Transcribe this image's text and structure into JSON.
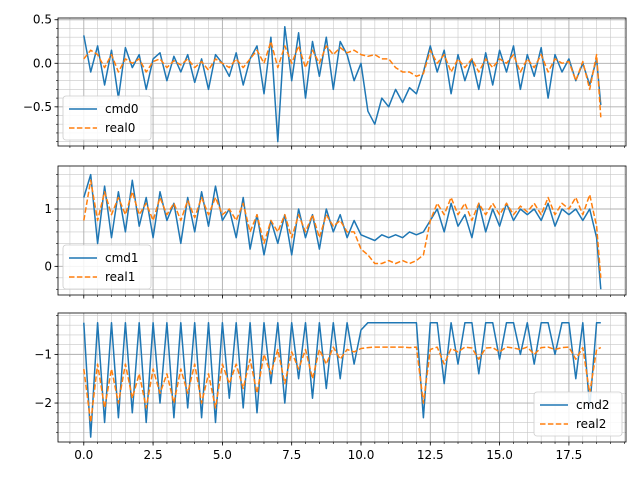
{
  "chart_data": [
    {
      "type": "line",
      "xlim": [
        -0.93,
        19.56
      ],
      "ylim": [
        -0.95,
        0.52
      ],
      "x_ticks": [
        0.0,
        2.5,
        5.0,
        7.5,
        10.0,
        12.5,
        15.0,
        17.5
      ],
      "x_tick_labels": [
        "",
        "",
        "",
        "",
        "",
        "",
        "",
        ""
      ],
      "y_ticks": [
        -0.5,
        0.0,
        0.5
      ],
      "y_tick_labels": [
        "−0.5",
        "0.0",
        "0.5"
      ],
      "grid": "major and minor",
      "legend": "lower-left",
      "series": [
        {
          "name": "cmd0",
          "color": "#1f77b4",
          "style": "solid",
          "x": [
            0.0,
            0.25,
            0.5,
            0.75,
            1.0,
            1.25,
            1.5,
            1.75,
            2.0,
            2.25,
            2.5,
            2.75,
            3.0,
            3.25,
            3.5,
            3.75,
            4.0,
            4.25,
            4.5,
            4.75,
            5.0,
            5.25,
            5.5,
            5.75,
            6.0,
            6.25,
            6.5,
            6.75,
            7.0,
            7.25,
            7.5,
            7.75,
            8.0,
            8.25,
            8.5,
            8.75,
            9.0,
            9.25,
            9.5,
            9.75,
            10.0,
            10.25,
            10.5,
            10.75,
            11.0,
            11.25,
            11.5,
            11.75,
            12.0,
            12.25,
            12.5,
            12.75,
            13.0,
            13.25,
            13.5,
            13.75,
            14.0,
            14.25,
            14.5,
            14.75,
            15.0,
            15.25,
            15.5,
            15.75,
            16.0,
            16.25,
            16.5,
            16.75,
            17.0,
            17.25,
            17.5,
            17.75,
            18.0,
            18.25,
            18.5,
            18.65
          ],
          "y": [
            0.32,
            -0.1,
            0.2,
            -0.25,
            0.15,
            -0.4,
            0.18,
            -0.05,
            0.1,
            -0.3,
            0.05,
            0.12,
            -0.2,
            0.08,
            -0.1,
            0.1,
            -0.22,
            0.05,
            -0.3,
            0.1,
            0.0,
            -0.15,
            0.12,
            -0.25,
            0.05,
            0.2,
            -0.35,
            0.3,
            -0.9,
            0.42,
            -0.2,
            0.35,
            -0.4,
            0.25,
            -0.15,
            0.3,
            -0.3,
            0.25,
            0.1,
            -0.2,
            0.0,
            -0.55,
            -0.7,
            -0.4,
            -0.5,
            -0.3,
            -0.45,
            -0.28,
            -0.35,
            -0.1,
            0.2,
            -0.1,
            0.15,
            -0.35,
            0.1,
            -0.2,
            0.05,
            -0.3,
            0.12,
            -0.25,
            0.15,
            -0.1,
            0.2,
            -0.3,
            0.1,
            -0.15,
            0.18,
            -0.4,
            0.1,
            -0.1,
            0.05,
            -0.2,
            0.0,
            -0.25,
            0.05,
            -0.48
          ]
        },
        {
          "name": "real0",
          "color": "#ff7f0e",
          "style": "dashed",
          "x": [
            0.0,
            0.25,
            0.5,
            0.75,
            1.0,
            1.25,
            1.5,
            1.75,
            2.0,
            2.25,
            2.5,
            2.75,
            3.0,
            3.25,
            3.5,
            3.75,
            4.0,
            4.25,
            4.5,
            4.75,
            5.0,
            5.25,
            5.5,
            5.75,
            6.0,
            6.25,
            6.5,
            6.75,
            7.0,
            7.25,
            7.5,
            7.75,
            8.0,
            8.25,
            8.5,
            8.75,
            9.0,
            9.25,
            9.5,
            9.75,
            10.0,
            10.25,
            10.5,
            10.75,
            11.0,
            11.25,
            11.5,
            11.75,
            12.0,
            12.25,
            12.5,
            12.75,
            13.0,
            13.25,
            13.5,
            13.75,
            14.0,
            14.25,
            14.5,
            14.75,
            15.0,
            15.25,
            15.5,
            15.75,
            16.0,
            16.25,
            16.5,
            16.75,
            17.0,
            17.25,
            17.5,
            17.75,
            18.0,
            18.25,
            18.5,
            18.65
          ],
          "y": [
            0.05,
            0.15,
            0.1,
            -0.05,
            0.1,
            -0.1,
            0.05,
            0.0,
            0.05,
            -0.1,
            0.02,
            0.05,
            -0.05,
            0.03,
            -0.02,
            0.05,
            -0.05,
            0.02,
            -0.08,
            0.05,
            0.0,
            -0.05,
            0.05,
            -0.05,
            0.05,
            0.15,
            0.0,
            0.25,
            -0.05,
            0.2,
            0.0,
            0.2,
            -0.05,
            0.15,
            0.0,
            0.2,
            0.1,
            0.18,
            0.12,
            0.15,
            0.1,
            0.08,
            0.1,
            0.05,
            0.05,
            -0.05,
            -0.1,
            -0.1,
            -0.15,
            -0.12,
            0.15,
            0.0,
            0.1,
            -0.1,
            0.05,
            -0.05,
            0.05,
            -0.1,
            0.05,
            -0.05,
            0.05,
            0.0,
            0.1,
            -0.1,
            0.05,
            -0.05,
            0.1,
            -0.1,
            0.05,
            0.0,
            0.02,
            -0.2,
            0.02,
            -0.3,
            0.1,
            -0.62
          ]
        }
      ]
    },
    {
      "type": "line",
      "xlim": [
        -0.93,
        19.56
      ],
      "ylim": [
        -0.5,
        1.75
      ],
      "x_ticks": [
        0.0,
        2.5,
        5.0,
        7.5,
        10.0,
        12.5,
        15.0,
        17.5
      ],
      "x_tick_labels": [
        "",
        "",
        "",
        "",
        "",
        "",
        "",
        ""
      ],
      "y_ticks": [
        0,
        1
      ],
      "y_tick_labels": [
        "0",
        "1"
      ],
      "grid": "major and minor",
      "legend": "lower-left",
      "series": [
        {
          "name": "cmd1",
          "color": "#1f77b4",
          "style": "solid",
          "x": [
            0.0,
            0.25,
            0.5,
            0.75,
            1.0,
            1.25,
            1.5,
            1.75,
            2.0,
            2.25,
            2.5,
            2.75,
            3.0,
            3.25,
            3.5,
            3.75,
            4.0,
            4.25,
            4.5,
            4.75,
            5.0,
            5.25,
            5.5,
            5.75,
            6.0,
            6.25,
            6.5,
            6.75,
            7.0,
            7.25,
            7.5,
            7.75,
            8.0,
            8.25,
            8.5,
            8.75,
            9.0,
            9.25,
            9.5,
            9.75,
            10.0,
            10.25,
            10.5,
            10.75,
            11.0,
            11.25,
            11.5,
            11.75,
            12.0,
            12.25,
            12.5,
            12.75,
            13.0,
            13.25,
            13.5,
            13.75,
            14.0,
            14.25,
            14.5,
            14.75,
            15.0,
            15.25,
            15.5,
            15.75,
            16.0,
            16.25,
            16.5,
            16.75,
            17.0,
            17.25,
            17.5,
            17.75,
            18.0,
            18.25,
            18.5,
            18.65
          ],
          "y": [
            1.2,
            1.6,
            0.4,
            1.4,
            0.5,
            1.3,
            0.6,
            1.5,
            0.7,
            1.2,
            0.5,
            1.3,
            0.8,
            1.1,
            0.4,
            1.2,
            0.6,
            1.3,
            0.7,
            1.4,
            0.8,
            1.0,
            0.5,
            1.2,
            0.3,
            0.9,
            0.2,
            0.8,
            0.4,
            0.9,
            0.2,
            1.0,
            0.5,
            0.9,
            0.3,
            1.0,
            0.6,
            0.9,
            0.5,
            0.8,
            0.55,
            0.5,
            0.45,
            0.55,
            0.5,
            0.55,
            0.5,
            0.6,
            0.55,
            0.6,
            0.8,
            1.0,
            0.6,
            1.1,
            0.7,
            0.9,
            0.5,
            1.1,
            0.6,
            1.0,
            0.7,
            1.1,
            0.8,
            1.0,
            0.9,
            1.0,
            0.8,
            1.1,
            0.7,
            1.0,
            0.9,
            1.0,
            0.8,
            1.0,
            0.5,
            -0.4
          ]
        },
        {
          "name": "real1",
          "color": "#ff7f0e",
          "style": "dashed",
          "x": [
            0.0,
            0.25,
            0.5,
            0.75,
            1.0,
            1.25,
            1.5,
            1.75,
            2.0,
            2.25,
            2.5,
            2.75,
            3.0,
            3.25,
            3.5,
            3.75,
            4.0,
            4.25,
            4.5,
            4.75,
            5.0,
            5.25,
            5.5,
            5.75,
            6.0,
            6.25,
            6.5,
            6.75,
            7.0,
            7.25,
            7.5,
            7.75,
            8.0,
            8.25,
            8.5,
            8.75,
            9.0,
            9.25,
            9.5,
            9.75,
            10.0,
            10.25,
            10.5,
            10.75,
            11.0,
            11.25,
            11.5,
            11.75,
            12.0,
            12.25,
            12.5,
            12.75,
            13.0,
            13.25,
            13.5,
            13.75,
            14.0,
            14.25,
            14.5,
            14.75,
            15.0,
            15.25,
            15.5,
            15.75,
            16.0,
            16.25,
            16.5,
            16.75,
            17.0,
            17.25,
            17.5,
            17.75,
            18.0,
            18.25,
            18.5,
            18.65
          ],
          "y": [
            0.8,
            1.5,
            0.8,
            1.3,
            0.9,
            1.2,
            0.9,
            1.3,
            0.9,
            1.1,
            0.8,
            1.2,
            0.9,
            1.1,
            0.8,
            1.15,
            0.85,
            1.2,
            0.9,
            1.2,
            0.9,
            1.0,
            0.8,
            1.1,
            0.6,
            0.9,
            0.4,
            0.8,
            0.6,
            0.9,
            0.5,
            0.9,
            0.6,
            0.9,
            0.5,
            0.9,
            0.7,
            0.8,
            0.6,
            0.6,
            0.3,
            0.2,
            0.05,
            0.05,
            0.1,
            0.05,
            0.1,
            0.05,
            0.1,
            0.2,
            0.8,
            1.1,
            0.9,
            1.2,
            0.9,
            1.1,
            0.8,
            1.1,
            0.9,
            1.1,
            0.9,
            1.1,
            0.9,
            1.05,
            0.95,
            1.1,
            0.9,
            1.2,
            0.9,
            1.1,
            1.0,
            1.2,
            0.9,
            1.25,
            0.7,
            -0.2
          ]
        }
      ]
    },
    {
      "type": "line",
      "xlim": [
        -0.93,
        19.56
      ],
      "ylim": [
        -2.8,
        -0.15
      ],
      "x_ticks": [
        0.0,
        2.5,
        5.0,
        7.5,
        10.0,
        12.5,
        15.0,
        17.5
      ],
      "x_tick_labels": [
        "0.0",
        "2.5",
        "5.0",
        "7.5",
        "10.0",
        "12.5",
        "15.0",
        "17.5"
      ],
      "y_ticks": [
        -2,
        -1
      ],
      "y_tick_labels": [
        "−2",
        "−1"
      ],
      "grid": "major and minor",
      "legend": "lower-right",
      "series": [
        {
          "name": "cmd2",
          "color": "#1f77b4",
          "style": "solid",
          "x": [
            0.0,
            0.25,
            0.5,
            0.75,
            1.0,
            1.25,
            1.5,
            1.75,
            2.0,
            2.25,
            2.5,
            2.75,
            3.0,
            3.25,
            3.5,
            3.75,
            4.0,
            4.25,
            4.5,
            4.75,
            5.0,
            5.25,
            5.5,
            5.75,
            6.0,
            6.25,
            6.5,
            6.75,
            7.0,
            7.25,
            7.5,
            7.75,
            8.0,
            8.25,
            8.5,
            8.75,
            9.0,
            9.25,
            9.5,
            9.75,
            10.0,
            10.25,
            10.5,
            10.75,
            11.0,
            11.25,
            11.5,
            11.75,
            12.0,
            12.25,
            12.5,
            12.75,
            13.0,
            13.25,
            13.5,
            13.75,
            14.0,
            14.25,
            14.5,
            14.75,
            15.0,
            15.25,
            15.5,
            15.75,
            16.0,
            16.25,
            16.5,
            16.75,
            17.0,
            17.25,
            17.5,
            17.75,
            18.0,
            18.25,
            18.5,
            18.65
          ],
          "y": [
            -0.35,
            -2.7,
            -0.35,
            -2.4,
            -0.35,
            -2.3,
            -0.35,
            -2.2,
            -0.35,
            -2.4,
            -0.35,
            -2.0,
            -0.35,
            -2.3,
            -0.35,
            -2.1,
            -0.35,
            -2.3,
            -0.35,
            -2.4,
            -0.35,
            -1.9,
            -0.35,
            -2.1,
            -0.35,
            -2.2,
            -0.35,
            -1.6,
            -0.35,
            -2.0,
            -0.35,
            -1.5,
            -0.35,
            -1.9,
            -0.35,
            -1.7,
            -0.35,
            -1.5,
            -0.35,
            -1.2,
            -0.5,
            -0.35,
            -0.35,
            -0.35,
            -0.35,
            -0.35,
            -0.35,
            -0.35,
            -0.35,
            -2.3,
            -0.35,
            -0.35,
            -1.6,
            -0.35,
            -1.2,
            -0.35,
            -0.35,
            -1.4,
            -0.35,
            -0.35,
            -1.1,
            -0.35,
            -0.35,
            -1.0,
            -0.35,
            -1.2,
            -0.35,
            -0.35,
            -1.0,
            -0.35,
            -0.35,
            -1.5,
            -0.35,
            -2.1,
            -0.35,
            -0.35
          ]
        },
        {
          "name": "real2",
          "color": "#ff7f0e",
          "style": "dashed",
          "x": [
            0.0,
            0.25,
            0.5,
            0.75,
            1.0,
            1.25,
            1.5,
            1.75,
            2.0,
            2.25,
            2.5,
            2.75,
            3.0,
            3.25,
            3.5,
            3.75,
            4.0,
            4.25,
            4.5,
            4.75,
            5.0,
            5.25,
            5.5,
            5.75,
            6.0,
            6.25,
            6.5,
            6.75,
            7.0,
            7.25,
            7.5,
            7.75,
            8.0,
            8.25,
            8.5,
            8.75,
            9.0,
            9.25,
            9.5,
            9.75,
            10.0,
            10.25,
            10.5,
            10.75,
            11.0,
            11.25,
            11.5,
            11.75,
            12.0,
            12.25,
            12.5,
            12.75,
            13.0,
            13.25,
            13.5,
            13.75,
            14.0,
            14.25,
            14.5,
            14.75,
            15.0,
            15.25,
            15.5,
            15.75,
            16.0,
            16.25,
            16.5,
            16.75,
            17.0,
            17.25,
            17.5,
            17.75,
            18.0,
            18.25,
            18.5,
            18.65
          ],
          "y": [
            -1.3,
            -2.4,
            -1.2,
            -2.1,
            -1.3,
            -2.0,
            -1.2,
            -1.9,
            -1.4,
            -2.1,
            -1.3,
            -1.8,
            -1.4,
            -2.0,
            -1.3,
            -1.8,
            -1.2,
            -2.0,
            -1.4,
            -2.1,
            -1.2,
            -1.6,
            -1.2,
            -1.7,
            -1.1,
            -1.8,
            -1.0,
            -1.4,
            -0.9,
            -1.6,
            -0.95,
            -1.3,
            -0.9,
            -1.5,
            -0.9,
            -1.2,
            -0.85,
            -1.1,
            -0.9,
            -0.95,
            -0.88,
            -0.86,
            -0.85,
            -0.85,
            -0.85,
            -0.85,
            -0.85,
            -0.86,
            -0.85,
            -2.0,
            -0.9,
            -0.85,
            -1.2,
            -0.88,
            -0.95,
            -0.85,
            -0.87,
            -1.1,
            -0.87,
            -0.86,
            -0.95,
            -0.85,
            -0.87,
            -0.9,
            -0.85,
            -1.0,
            -0.86,
            -0.85,
            -0.9,
            -0.86,
            -0.85,
            -1.1,
            -0.86,
            -1.8,
            -0.9,
            -0.86
          ]
        }
      ]
    }
  ]
}
